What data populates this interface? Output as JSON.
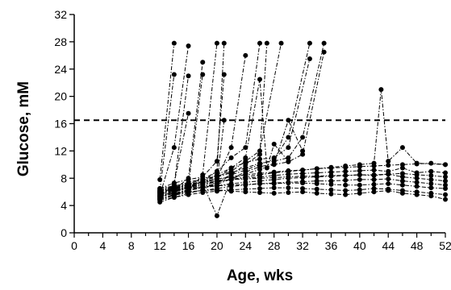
{
  "chart_data": {
    "type": "line",
    "title": "",
    "xlabel": "Age, wks",
    "ylabel": "Glucose, mM",
    "xlim": [
      0,
      52
    ],
    "ylim": [
      0,
      32
    ],
    "x_ticks": [
      "0",
      "4",
      "8",
      "12",
      "16",
      "20",
      "24",
      "28",
      "32",
      "36",
      "40",
      "44",
      "48",
      "52"
    ],
    "x_tick_values": [
      0,
      2,
      4,
      6,
      8,
      10,
      12,
      14,
      16,
      18,
      20,
      22,
      24,
      26,
      28,
      30,
      32,
      34,
      36,
      38,
      40,
      42,
      44,
      46,
      48,
      50,
      52
    ],
    "y_ticks": [
      "0",
      "4",
      "8",
      "12",
      "16",
      "20",
      "24",
      "28",
      "32"
    ],
    "y_tick_values": [
      0,
      4,
      8,
      12,
      16,
      20,
      24,
      28,
      32
    ],
    "threshold_line": {
      "y": 16.5,
      "style": "dashed"
    },
    "series": [
      {
        "x": [
          12,
          14
        ],
        "y": [
          7.8,
          27.8
        ]
      },
      {
        "x": [
          12,
          14
        ],
        "y": [
          6.2,
          23.2
        ]
      },
      {
        "x": [
          12,
          14,
          16
        ],
        "y": [
          5.5,
          12.5,
          27.4
        ]
      },
      {
        "x": [
          12,
          14,
          16
        ],
        "y": [
          6.0,
          7.0,
          23.0
        ]
      },
      {
        "x": [
          12,
          14,
          16
        ],
        "y": [
          5.2,
          7.2,
          17.5
        ]
      },
      {
        "x": [
          12,
          14,
          16,
          18
        ],
        "y": [
          5.0,
          6.3,
          8.0,
          25.0
        ]
      },
      {
        "x": [
          12,
          14,
          16,
          18
        ],
        "y": [
          5.8,
          6.5,
          7.0,
          23.2
        ]
      },
      {
        "x": [
          12,
          14,
          16,
          18,
          20
        ],
        "y": [
          4.8,
          5.5,
          6.2,
          8.5,
          27.8
        ]
      },
      {
        "x": [
          12,
          14,
          16,
          18,
          20,
          21
        ],
        "y": [
          5.3,
          6.0,
          6.8,
          7.5,
          9.0,
          27.8
        ]
      },
      {
        "x": [
          12,
          14,
          16,
          18,
          20,
          21
        ],
        "y": [
          6.5,
          7.3,
          7.8,
          8.2,
          10.5,
          23.2
        ]
      },
      {
        "x": [
          12,
          14,
          16,
          18,
          20,
          21
        ],
        "y": [
          4.5,
          5.2,
          5.8,
          6.3,
          7.5,
          16.5
        ]
      },
      {
        "x": [
          12,
          14,
          16,
          18,
          20,
          22,
          24
        ],
        "y": [
          5.6,
          6.2,
          6.6,
          7.2,
          8.0,
          12.5,
          26.0
        ]
      },
      {
        "x": [
          12,
          14,
          16,
          18,
          20,
          22,
          24,
          26
        ],
        "y": [
          6.0,
          6.5,
          7.2,
          7.8,
          9.0,
          11.0,
          12.5,
          27.8
        ]
      },
      {
        "x": [
          12,
          14,
          16,
          18,
          20,
          22,
          24,
          26,
          27
        ],
        "y": [
          5.0,
          5.6,
          6.2,
          6.8,
          7.2,
          8.5,
          10.0,
          11.5,
          27.8
        ]
      },
      {
        "x": [
          12,
          14,
          16,
          18,
          20,
          22,
          24,
          26,
          29
        ],
        "y": [
          6.3,
          6.8,
          7.4,
          7.9,
          8.3,
          9.0,
          10.5,
          12.0,
          27.8
        ]
      },
      {
        "x": [
          12,
          14,
          16,
          18,
          20,
          22,
          24,
          26,
          28,
          30,
          33
        ],
        "y": [
          5.4,
          6.0,
          6.5,
          7.0,
          7.5,
          8.5,
          9.2,
          10.0,
          10.8,
          14.0,
          27.8
        ]
      },
      {
        "x": [
          12,
          14,
          16,
          18,
          20,
          22,
          24,
          26,
          28,
          30,
          33
        ],
        "y": [
          5.8,
          6.4,
          6.9,
          7.4,
          8.0,
          9.5,
          10.3,
          10.8,
          11.0,
          12.5,
          25.5
        ]
      },
      {
        "x": [
          12,
          14,
          16,
          18,
          20,
          22,
          24,
          26,
          28,
          30,
          32,
          35
        ],
        "y": [
          6.1,
          6.6,
          7.0,
          7.6,
          8.2,
          8.8,
          9.5,
          10.2,
          10.5,
          11.0,
          14.0,
          27.8
        ]
      },
      {
        "x": [
          12,
          14,
          16,
          18,
          20,
          22,
          24,
          26,
          28,
          30,
          32,
          35
        ],
        "y": [
          5.2,
          5.8,
          6.3,
          6.7,
          7.1,
          7.9,
          8.6,
          9.3,
          10.0,
          10.4,
          11.5,
          26.5
        ]
      },
      {
        "x": [
          12,
          14,
          16,
          18,
          20,
          22,
          24,
          26,
          28,
          30,
          32
        ],
        "y": [
          5.7,
          6.2,
          6.7,
          7.2,
          2.5,
          8.0,
          8.9,
          9.7,
          10.1,
          16.5,
          12.0
        ]
      },
      {
        "x": [
          12,
          14,
          16,
          18,
          20,
          22,
          24,
          26,
          27,
          28,
          30
        ],
        "y": [
          6.0,
          6.5,
          7.0,
          7.4,
          8.5,
          9.5,
          11.0,
          22.5,
          9.5,
          13.0,
          10.5
        ]
      },
      {
        "x": [
          12,
          14,
          16,
          18,
          20,
          22,
          24,
          26,
          28,
          30,
          32,
          34,
          36,
          38,
          40,
          42,
          43,
          44,
          46,
          48,
          52
        ],
        "y": [
          5.5,
          6.0,
          6.5,
          7.0,
          7.5,
          7.8,
          8.2,
          8.5,
          8.8,
          9.0,
          9.2,
          9.4,
          9.6,
          9.8,
          10.0,
          10.2,
          21.0,
          10.5,
          12.5,
          10.2,
          10.0
        ]
      },
      {
        "x": [
          12,
          14,
          16,
          18,
          20,
          22,
          24,
          26,
          28,
          30,
          32,
          34,
          36,
          38,
          40,
          42,
          44,
          46,
          48,
          50,
          52
        ],
        "y": [
          6.2,
          6.7,
          7.1,
          7.5,
          7.9,
          8.2,
          8.5,
          8.7,
          8.9,
          9.1,
          9.2,
          9.4,
          9.5,
          9.6,
          9.7,
          9.8,
          9.9,
          10.0,
          10.1,
          10.2,
          10.0
        ]
      },
      {
        "x": [
          12,
          14,
          16,
          18,
          20,
          22,
          24,
          26,
          28,
          30,
          32,
          34,
          36,
          38,
          40,
          42,
          44,
          46,
          48,
          50,
          52
        ],
        "y": [
          5.8,
          6.3,
          6.8,
          7.2,
          7.5,
          7.8,
          8.0,
          8.2,
          8.4,
          8.6,
          8.7,
          8.8,
          8.9,
          9.0,
          9.1,
          9.2,
          9.0,
          9.5,
          8.8,
          9.0,
          8.8
        ]
      },
      {
        "x": [
          12,
          14,
          16,
          18,
          20,
          22,
          24,
          26,
          28,
          30,
          32,
          34,
          36,
          38,
          40,
          42,
          44,
          46,
          48,
          50,
          52
        ],
        "y": [
          5.3,
          5.8,
          6.2,
          6.6,
          6.9,
          7.2,
          7.4,
          7.6,
          7.8,
          8.0,
          8.1,
          8.2,
          8.3,
          8.4,
          8.5,
          8.5,
          8.6,
          8.7,
          8.5,
          8.4,
          8.2
        ]
      },
      {
        "x": [
          12,
          14,
          16,
          18,
          20,
          22,
          24,
          26,
          28,
          30,
          32,
          34,
          36,
          38,
          40,
          42,
          44,
          46,
          48,
          50,
          52
        ],
        "y": [
          6.5,
          6.9,
          7.2,
          7.4,
          7.6,
          7.8,
          7.9,
          8.0,
          8.1,
          8.2,
          8.3,
          8.3,
          8.4,
          8.4,
          8.5,
          8.4,
          8.6,
          8.2,
          8.0,
          7.8,
          7.6
        ]
      },
      {
        "x": [
          12,
          14,
          16,
          18,
          20,
          22,
          24,
          26,
          28,
          30,
          32,
          34,
          36,
          38,
          40,
          42,
          44,
          46,
          48,
          50,
          52
        ],
        "y": [
          5.0,
          5.5,
          5.9,
          6.2,
          6.5,
          6.8,
          7.0,
          7.2,
          7.3,
          7.4,
          7.5,
          7.6,
          7.6,
          7.7,
          7.8,
          7.8,
          7.9,
          7.6,
          7.4,
          7.2,
          7.0
        ]
      },
      {
        "x": [
          12,
          14,
          16,
          18,
          20,
          22,
          24,
          26,
          28,
          30,
          32,
          34,
          36,
          38,
          40,
          42,
          44,
          46,
          48,
          50,
          52
        ],
        "y": [
          5.9,
          6.2,
          6.5,
          6.7,
          6.9,
          7.0,
          7.1,
          7.2,
          7.2,
          7.3,
          7.3,
          7.2,
          7.1,
          7.0,
          7.0,
          7.1,
          7.2,
          7.0,
          6.8,
          6.6,
          6.5
        ]
      },
      {
        "x": [
          12,
          14,
          16,
          18,
          20,
          22,
          24,
          26,
          28,
          30,
          32,
          34,
          36,
          38,
          40,
          42,
          44,
          46,
          48,
          50,
          52
        ],
        "y": [
          4.8,
          5.2,
          5.6,
          5.9,
          6.1,
          6.3,
          6.4,
          6.5,
          6.6,
          6.6,
          6.5,
          6.4,
          6.3,
          6.2,
          6.3,
          6.5,
          6.4,
          6.2,
          6.0,
          5.8,
          5.6
        ]
      },
      {
        "x": [
          12,
          14,
          16,
          18,
          20,
          22,
          24,
          26,
          28,
          30,
          32,
          34,
          36,
          38,
          40,
          42,
          44,
          46,
          48,
          50,
          52
        ],
        "y": [
          5.4,
          5.7,
          6.0,
          6.2,
          6.3,
          6.1,
          6.0,
          5.9,
          5.8,
          5.9,
          6.0,
          5.8,
          5.7,
          5.6,
          5.8,
          6.0,
          6.2,
          5.8,
          5.6,
          5.4,
          4.9
        ]
      }
    ]
  }
}
